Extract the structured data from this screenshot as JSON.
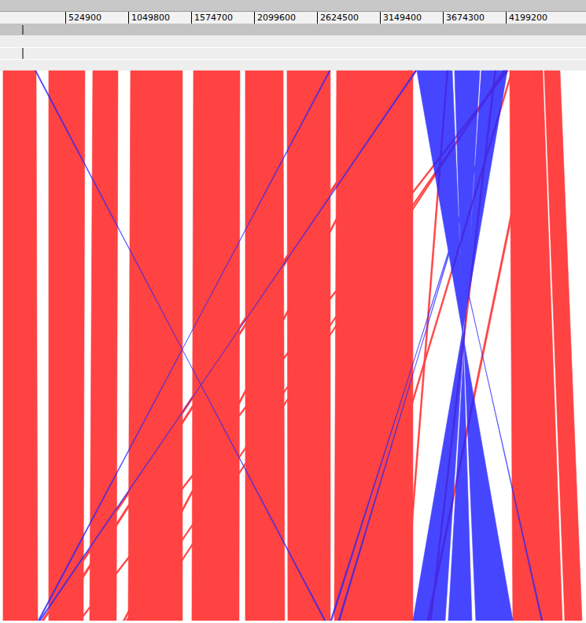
{
  "chart_data": {
    "type": "synteny",
    "xlim": [
      -26000,
      4862000
    ],
    "xticks": [
      524900,
      1049800,
      1574700,
      2099600,
      2624500,
      3149400,
      3674300,
      4199200
    ],
    "tick_labels": "x",
    "series": [
      {
        "color": "#ff2222",
        "links": [
          {
            "top": [
              0,
              275600
            ],
            "bottom": [
              0,
              288700
            ]
          },
          {
            "top": [
              380500,
              682300
            ],
            "bottom": [
              380500,
              669200
            ]
          },
          {
            "top": [
              748000,
              957900
            ],
            "bottom": [
              721700,
              944800
            ]
          },
          {
            "top": [
              1062900,
              1495900
            ],
            "bottom": [
              1043200,
              1495900
            ]
          },
          {
            "top": [
              1587800,
              1974900
            ],
            "bottom": [
              1574600,
              1968300
            ]
          },
          {
            "top": [
              2020800,
              2335700
            ],
            "bottom": [
              2020800,
              2348800
            ]
          },
          {
            "top": [
              2368500,
              2729400
            ],
            "bottom": [
              2375100,
              2729400
            ]
          },
          {
            "top": [
              2781900,
              3418300
            ],
            "bottom": [
              2762200,
              3418300
            ]
          },
          {
            "top": [
              4225300,
              4500800
            ],
            "bottom": [
              4251500,
              4664900
            ]
          },
          {
            "top": [
              4514000,
              4645200
            ],
            "bottom": [
              4684600,
              4828900
            ]
          },
          {
            "top": [
              3400000,
              3418000
            ],
            "bottom": [
              320000,
              340000
            ]
          },
          {
            "top": [
              3380000,
              3395000
            ],
            "bottom": [
              420000,
              440000
            ]
          },
          {
            "top": [
              4200000,
              4215000
            ],
            "bottom": [
              629900,
              645000
            ]
          },
          {
            "top": [
              4185000,
              4198000
            ],
            "bottom": [
              1023500,
              1036000
            ]
          },
          {
            "top": [
              4170000,
              4182000
            ],
            "bottom": [
              1154700,
              1167000
            ]
          },
          {
            "top": [
              3430000,
              3445000
            ],
            "bottom": [
              1000000,
              1015000
            ]
          },
          {
            "top": [
              4480000,
              4495000
            ],
            "bottom": [
              3536400,
              3551000
            ]
          },
          {
            "top": [
              3700000,
              3712000
            ],
            "bottom": [
              3340000,
              3352000
            ]
          },
          {
            "top": [
              4100000,
              4112000
            ],
            "bottom": [
              3560000,
              3572000
            ]
          },
          {
            "top": [
              4240000,
              4252000
            ],
            "bottom": [
              2860000,
              2872000
            ]
          }
        ]
      },
      {
        "color": "#2626ff",
        "links": [
          {
            "top": [
              3451100,
              3746300
            ],
            "bottom": [
              4251500,
              3943200
            ]
          },
          {
            "top": [
              3766000,
              3976000
            ],
            "bottom": [
              3910400,
              3713500
            ]
          },
          {
            "top": [
              3989100,
              4205600
            ],
            "bottom": [
              3687300,
              3418300
            ]
          },
          {
            "top": [
              3438000,
              3451000
            ],
            "bottom": [
              312000,
              300000
            ]
          },
          {
            "top": [
              2720000,
              2729000
            ],
            "bottom": [
              302000,
              290000
            ]
          },
          {
            "top": [
              4190000,
              4205000
            ],
            "bottom": [
              2742000,
              2729000
            ]
          },
          {
            "top": [
              4170000,
              4185000
            ],
            "bottom": [
              2808000,
              2795000
            ]
          },
          {
            "top": [
              265000,
              275000
            ],
            "bottom": [
              2690000,
              2680000
            ]
          },
          {
            "top": [
              3460000,
              3470000
            ],
            "bottom": [
              4500000,
              4490000
            ]
          }
        ]
      }
    ]
  }
}
